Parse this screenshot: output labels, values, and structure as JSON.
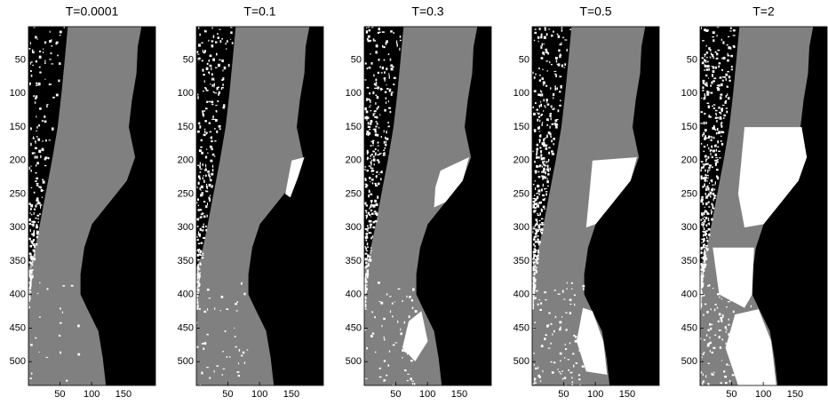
{
  "chart_data": [
    {
      "type": "image",
      "title": "T=0.0001",
      "xlim": [
        0.5,
        200.5
      ],
      "ylim": [
        535.5,
        0.5
      ],
      "xticks": [
        50,
        100,
        150
      ],
      "yticks": [
        50,
        100,
        150,
        200,
        250,
        300,
        350,
        400,
        450,
        500
      ]
    },
    {
      "type": "image",
      "title": "T=0.1",
      "xlim": [
        0.5,
        200.5
      ],
      "ylim": [
        535.5,
        0.5
      ],
      "xticks": [
        50,
        100,
        150
      ],
      "yticks": [
        50,
        100,
        150,
        200,
        250,
        300,
        350,
        400,
        450,
        500
      ]
    },
    {
      "type": "image",
      "title": "T=0.3",
      "xlim": [
        0.5,
        200.5
      ],
      "ylim": [
        535.5,
        0.5
      ],
      "xticks": [
        50,
        100,
        150
      ],
      "yticks": [
        50,
        100,
        150,
        200,
        250,
        300,
        350,
        400,
        450,
        500
      ]
    },
    {
      "type": "image",
      "title": "T=0.5",
      "xlim": [
        0.5,
        200.5
      ],
      "ylim": [
        535.5,
        0.5
      ],
      "xticks": [
        50,
        100,
        150
      ],
      "yticks": [
        50,
        100,
        150,
        200,
        250,
        300,
        350,
        400,
        450,
        500
      ]
    },
    {
      "type": "image",
      "title": "T=2",
      "xlim": [
        0.5,
        200.5
      ],
      "ylim": [
        535.5,
        0.5
      ],
      "xticks": [
        50,
        100,
        150
      ],
      "yticks": [
        50,
        100,
        150,
        200,
        250,
        300,
        350,
        400,
        450,
        500
      ]
    }
  ]
}
